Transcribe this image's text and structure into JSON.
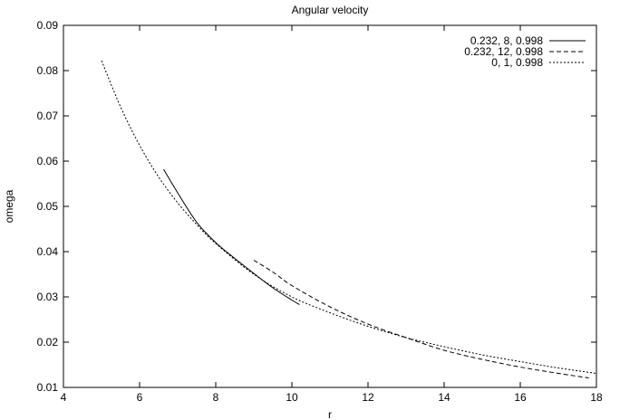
{
  "chart_data": {
    "type": "line",
    "title": "Angular velocity",
    "xlabel": "r",
    "ylabel": "omega",
    "xlim": [
      4,
      18
    ],
    "ylim": [
      0.01,
      0.09
    ],
    "x_ticks": [
      "4",
      "6",
      "8",
      "10",
      "12",
      "14",
      "16",
      "18"
    ],
    "y_ticks": [
      "0.01",
      "0.02",
      "0.03",
      "0.04",
      "0.05",
      "0.06",
      "0.07",
      "0.08",
      "0.09"
    ],
    "grid": false,
    "legend_position": "top-right",
    "series": [
      {
        "name": "0.232, 8, 0.998",
        "dash": "solid",
        "x": [
          6.63,
          7.0,
          7.5,
          8.0,
          8.5,
          9.0,
          9.5,
          10.0,
          10.2
        ],
        "y": [
          0.0582,
          0.053,
          0.0465,
          0.042,
          0.0385,
          0.0352,
          0.032,
          0.0293,
          0.0283
        ]
      },
      {
        "name": "0.232, 12, 0.998",
        "dash": "dashed",
        "x": [
          9.0,
          9.5,
          10.0,
          11.0,
          12.0,
          13.0,
          14.0,
          15.0,
          16.0,
          17.0,
          17.8
        ],
        "y": [
          0.0381,
          0.0355,
          0.0325,
          0.0278,
          0.024,
          0.021,
          0.0182,
          0.0162,
          0.0145,
          0.0131,
          0.0121
        ]
      },
      {
        "name": "0, 1, 0.998",
        "dash": "dotted",
        "x": [
          5.0,
          5.5,
          6.0,
          6.5,
          7.0,
          7.5,
          8.0,
          9.0,
          10.0,
          11.0,
          12.0,
          13.0,
          14.0,
          15.0,
          16.0,
          17.0,
          18.0
        ],
        "y": [
          0.0822,
          0.072,
          0.0635,
          0.0565,
          0.0508,
          0.046,
          0.0418,
          0.035,
          0.03,
          0.0265,
          0.0235,
          0.021,
          0.019,
          0.0172,
          0.0157,
          0.0143,
          0.0131
        ]
      }
    ]
  }
}
